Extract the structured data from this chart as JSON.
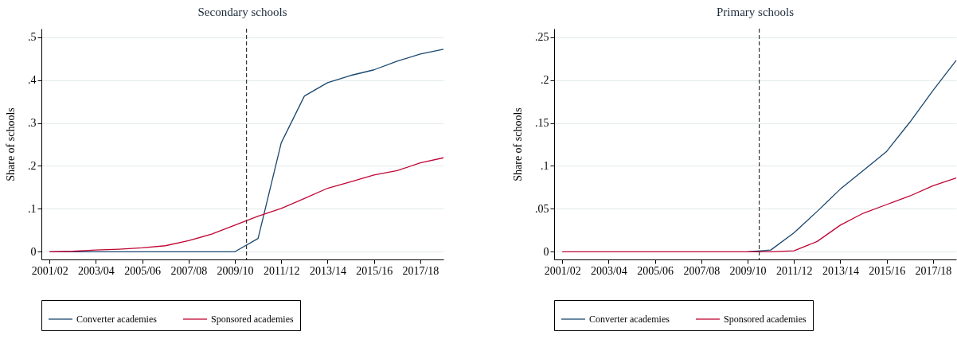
{
  "chart_data": [
    {
      "type": "line",
      "title": "Secondary schools",
      "ylabel": "Share of schools",
      "categories": [
        "2001/02",
        null,
        "2003/04",
        null,
        "2005/06",
        null,
        "2007/08",
        null,
        "2009/10",
        null,
        "2011/12",
        null,
        "2013/14",
        null,
        "2015/16",
        null,
        "2017/18",
        null
      ],
      "ylim": [
        -0.018,
        0.52
      ],
      "yticks": [
        0,
        {
          "value": 0.1,
          "label": ".1"
        },
        {
          "value": 0.2,
          "label": ".2"
        },
        {
          "value": 0.3,
          "label": ".3"
        },
        {
          "value": 0.4,
          "label": ".4"
        },
        {
          "value": 0.5,
          "label": ".5"
        }
      ],
      "grid": "y",
      "legend": "bottom",
      "series": [
        {
          "name": "Converter academies",
          "color": "#1a476f",
          "values": [
            0,
            0,
            0,
            0,
            0,
            0,
            0,
            0,
            0,
            0.031,
            0.254,
            0.363,
            0.394,
            0.411,
            0.424,
            0.444,
            0.461,
            0.472
          ]
        },
        {
          "name": "Sponsored academies",
          "color": "#c10534",
          "values": [
            0,
            0.001,
            0.004,
            0.006,
            0.009,
            0.014,
            0.026,
            0.041,
            0.062,
            0.083,
            0.101,
            0.124,
            0.148,
            0.163,
            0.179,
            0.189,
            0.207,
            0.219
          ]
        }
      ]
    },
    {
      "type": "line",
      "title": "Primary schools",
      "ylabel": "Share of schools",
      "categories": [
        "2001/02",
        null,
        "2003/04",
        null,
        "2005/06",
        null,
        "2007/08",
        null,
        "2009/10",
        null,
        "2011/12",
        null,
        "2013/14",
        null,
        "2015/16",
        null,
        "2017/18",
        null
      ],
      "ylim": [
        -0.009,
        0.26
      ],
      "yticks": [
        0,
        {
          "value": 0.05,
          "label": ".05"
        },
        {
          "value": 0.1,
          "label": ".1"
        },
        {
          "value": 0.15,
          "label": ".15"
        },
        {
          "value": 0.2,
          "label": ".2"
        },
        {
          "value": 0.25,
          "label": ".25"
        }
      ],
      "grid": "y",
      "legend": "bottom",
      "series": [
        {
          "name": "Converter academies",
          "color": "#1a476f",
          "values": [
            null,
            null,
            null,
            null,
            null,
            null,
            null,
            null,
            0,
            0.002,
            0.022,
            0.047,
            0.073,
            0.095,
            0.117,
            0.151,
            0.188,
            0.223
          ]
        },
        {
          "name": "Sponsored academies",
          "color": "#c10534",
          "values": [
            0,
            0,
            0,
            0,
            0,
            0,
            0,
            0,
            0,
            0,
            0.001,
            0.012,
            0.031,
            0.045,
            0.055,
            0.065,
            0.077,
            0.086
          ]
        }
      ]
    }
  ]
}
